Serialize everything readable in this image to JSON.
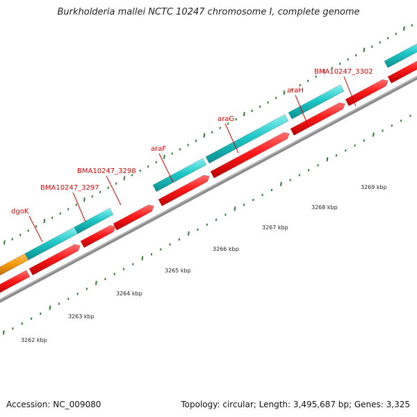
{
  "title": "Burkholderia mallei NCTC 10247 chromosome I, complete genome",
  "footer": {
    "accession": "Accession: NC_009080",
    "topology": "Topology: circular; Length: 3,495,687 bp; Genes: 3,325"
  },
  "colors": {
    "background": "#ffffff",
    "backbone": "#8a8a8a",
    "cds": "#ff1a1a",
    "gene": "#20c8c8",
    "other_feature": "#f59a0a",
    "tick": "#2d7d2d",
    "label": "#dd0000",
    "scale_text": "#222222"
  },
  "scale_labels": [
    "3262 kbp",
    "3263 kbp",
    "3264 kbp",
    "3265 kbp",
    "3266 kbp",
    "3267 kbp",
    "3268 kbp",
    "3269 kbp"
  ],
  "gene_labels": [
    "dgoK",
    "BMA10247_3297",
    "BMA10247_3298",
    "araF",
    "araG",
    "araH",
    "BMA10247_3302"
  ]
}
